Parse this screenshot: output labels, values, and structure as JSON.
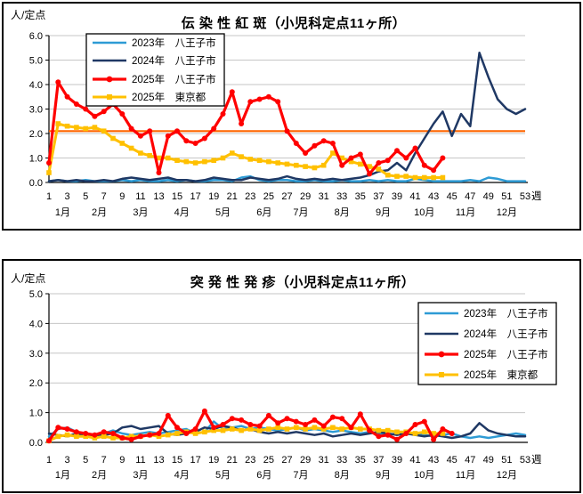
{
  "page": {
    "background": "#FFFFFF",
    "text_color": "#000000",
    "gridline_color": "#C6C6C6"
  },
  "chart_data": [
    {
      "type": "line",
      "title": "伝 染 性 紅 斑（小児科定点11ヶ所）",
      "ylabel": "人/定点",
      "xlabel": "週",
      "ylim": [
        0,
        6
      ],
      "grid": true,
      "legend_position": "top-left",
      "xticks": [
        1,
        3,
        5,
        7,
        9,
        11,
        13,
        15,
        17,
        19,
        21,
        23,
        25,
        27,
        29,
        31,
        33,
        35,
        37,
        39,
        41,
        43,
        45,
        47,
        49,
        51,
        53
      ],
      "month_labels": [
        {
          "label": "1月",
          "week": 2.5
        },
        {
          "label": "2月",
          "week": 6.5
        },
        {
          "label": "3月",
          "week": 11
        },
        {
          "label": "4月",
          "week": 15.5
        },
        {
          "label": "5月",
          "week": 20
        },
        {
          "label": "6月",
          "week": 24.5
        },
        {
          "label": "7月",
          "week": 28.5
        },
        {
          "label": "8月",
          "week": 33
        },
        {
          "label": "9月",
          "week": 37.5
        },
        {
          "label": "10月",
          "week": 42
        },
        {
          "label": "11月",
          "week": 46.5
        },
        {
          "label": "12月",
          "week": 51
        }
      ],
      "reference_line": {
        "value": 2.1,
        "color": "#FF6600"
      },
      "series": [
        {
          "name": "2023年　八王子市",
          "color": "#2E9BD5",
          "marker": "none",
          "values": [
            0.05,
            0.1,
            0.05,
            0.05,
            0.1,
            0.05,
            0.05,
            0.05,
            0.1,
            0.05,
            0.1,
            0.05,
            0.05,
            0.1,
            0.05,
            0.1,
            0.05,
            0.05,
            0.1,
            0.1,
            0.05,
            0.2,
            0.25,
            0.1,
            0.05,
            0.1,
            0.1,
            0.05,
            0.05,
            0.1,
            0.05,
            0.05,
            0.1,
            0.05,
            0.05,
            0.1,
            0.05,
            0.1,
            0.05,
            0.05,
            0.15,
            0.1,
            0.05,
            0.05,
            0.05,
            0.05,
            0.1,
            0.05,
            0.2,
            0.15,
            0.05,
            0.05,
            0.05
          ]
        },
        {
          "name": "2024年　八王子市",
          "color": "#1F3864",
          "marker": "none",
          "values": [
            0.05,
            0.1,
            0.05,
            0.1,
            0.05,
            0.05,
            0.1,
            0.05,
            0.15,
            0.2,
            0.15,
            0.1,
            0.15,
            0.2,
            0.1,
            0.1,
            0.05,
            0.1,
            0.2,
            0.15,
            0.1,
            0.1,
            0.2,
            0.15,
            0.1,
            0.15,
            0.25,
            0.15,
            0.1,
            0.15,
            0.1,
            0.15,
            0.1,
            0.15,
            0.2,
            0.3,
            0.45,
            0.5,
            0.8,
            0.5,
            1.2,
            1.8,
            2.4,
            2.9,
            1.9,
            2.8,
            2.3,
            5.3,
            4.3,
            3.4,
            3.0,
            2.8,
            3.0
          ]
        },
        {
          "name": "2025年　八王子市",
          "color": "#FF0000",
          "marker": "circle",
          "values": [
            0.8,
            4.1,
            3.5,
            3.2,
            3.0,
            2.7,
            2.9,
            3.2,
            2.8,
            2.2,
            1.9,
            2.1,
            0.4,
            1.9,
            2.1,
            1.7,
            1.6,
            1.8,
            2.2,
            2.8,
            3.7,
            2.4,
            3.3,
            3.4,
            3.5,
            3.3,
            2.1,
            1.6,
            1.2,
            1.5,
            1.7,
            1.6,
            0.7,
            1.0,
            1.15,
            0.35,
            0.8,
            0.9,
            1.3,
            1.0,
            1.4,
            0.7,
            0.5,
            1.0
          ]
        },
        {
          "name": "2025年　東京都",
          "color": "#FFC000",
          "marker": "square",
          "values": [
            0.4,
            2.4,
            2.3,
            2.25,
            2.2,
            2.25,
            2.1,
            1.8,
            1.6,
            1.4,
            1.2,
            1.1,
            1.0,
            1.0,
            0.9,
            0.85,
            0.8,
            0.85,
            0.9,
            1.0,
            1.2,
            1.05,
            0.95,
            0.9,
            0.85,
            0.8,
            0.75,
            0.7,
            0.65,
            0.6,
            0.7,
            1.2,
            1.0,
            0.85,
            0.75,
            0.65,
            0.55,
            0.3,
            0.25,
            0.25,
            0.2,
            0.2,
            0.2,
            0.2
          ]
        }
      ]
    },
    {
      "type": "line",
      "title": "突 発 性 発 疹（小児科定点11ヶ所）",
      "ylabel": "人/定点",
      "xlabel": "週",
      "ylim": [
        0,
        5
      ],
      "grid": true,
      "legend_position": "right",
      "xticks": [
        1,
        3,
        5,
        7,
        9,
        11,
        13,
        15,
        17,
        19,
        21,
        23,
        25,
        27,
        29,
        31,
        33,
        35,
        37,
        39,
        41,
        43,
        45,
        47,
        49,
        51,
        53
      ],
      "month_labels": [
        {
          "label": "1月",
          "week": 2.5
        },
        {
          "label": "2月",
          "week": 6.5
        },
        {
          "label": "3月",
          "week": 11
        },
        {
          "label": "4月",
          "week": 15.5
        },
        {
          "label": "5月",
          "week": 20
        },
        {
          "label": "6月",
          "week": 24.5
        },
        {
          "label": "7月",
          "week": 28.5
        },
        {
          "label": "8月",
          "week": 33
        },
        {
          "label": "9月",
          "week": 37.5
        },
        {
          "label": "10月",
          "week": 42
        },
        {
          "label": "11月",
          "week": 46.5
        },
        {
          "label": "12月",
          "week": 51
        }
      ],
      "series": [
        {
          "name": "2023年　八王子市",
          "color": "#2E9BD5",
          "marker": "none",
          "values": [
            0.2,
            0.45,
            0.5,
            0.35,
            0.3,
            0.25,
            0.3,
            0.4,
            0.3,
            0.25,
            0.3,
            0.35,
            0.3,
            0.35,
            0.4,
            0.45,
            0.3,
            0.35,
            0.7,
            0.45,
            0.5,
            0.55,
            0.45,
            0.5,
            0.45,
            0.4,
            0.45,
            0.5,
            0.4,
            0.45,
            0.4,
            0.35,
            0.4,
            0.35,
            0.3,
            0.35,
            0.3,
            0.25,
            0.3,
            0.35,
            0.3,
            0.25,
            0.2,
            0.25,
            0.3,
            0.2,
            0.15,
            0.2,
            0.15,
            0.2,
            0.25,
            0.3,
            0.25
          ]
        },
        {
          "name": "2024年　八王子市",
          "color": "#1F3864",
          "marker": "none",
          "values": [
            0.3,
            0.25,
            0.2,
            0.3,
            0.25,
            0.2,
            0.25,
            0.3,
            0.5,
            0.55,
            0.45,
            0.5,
            0.55,
            0.3,
            0.25,
            0.3,
            0.35,
            0.5,
            0.45,
            0.55,
            0.5,
            0.4,
            0.45,
            0.35,
            0.3,
            0.35,
            0.3,
            0.35,
            0.3,
            0.25,
            0.3,
            0.2,
            0.25,
            0.3,
            0.25,
            0.3,
            0.35,
            0.3,
            0.25,
            0.3,
            0.25,
            0.2,
            0.25,
            0.2,
            0.15,
            0.2,
            0.3,
            0.65,
            0.4,
            0.3,
            0.25,
            0.2,
            0.2
          ]
        },
        {
          "name": "2025年　八王子市",
          "color": "#FF0000",
          "marker": "circle",
          "values": [
            0.05,
            0.5,
            0.45,
            0.35,
            0.3,
            0.25,
            0.35,
            0.3,
            0.15,
            0.1,
            0.2,
            0.25,
            0.3,
            0.9,
            0.5,
            0.3,
            0.45,
            1.05,
            0.5,
            0.6,
            0.8,
            0.75,
            0.6,
            0.55,
            0.9,
            0.65,
            0.8,
            0.7,
            0.6,
            0.75,
            0.55,
            0.85,
            0.8,
            0.5,
            0.95,
            0.4,
            0.2,
            0.25,
            0.1,
            0.3,
            0.6,
            0.7,
            0.1,
            0.45,
            0.3
          ]
        },
        {
          "name": "2025年　東京都",
          "color": "#FFC000",
          "marker": "square",
          "values": [
            0.05,
            0.2,
            0.25,
            0.2,
            0.2,
            0.15,
            0.2,
            0.15,
            0.15,
            0.2,
            0.2,
            0.25,
            0.2,
            0.25,
            0.3,
            0.35,
            0.3,
            0.35,
            0.4,
            0.4,
            0.45,
            0.4,
            0.45,
            0.4,
            0.45,
            0.5,
            0.45,
            0.5,
            0.45,
            0.5,
            0.45,
            0.5,
            0.45,
            0.5,
            0.45,
            0.45,
            0.4,
            0.4,
            0.35,
            0.35,
            0.3,
            0.35,
            0.3,
            0.3
          ]
        }
      ]
    }
  ]
}
